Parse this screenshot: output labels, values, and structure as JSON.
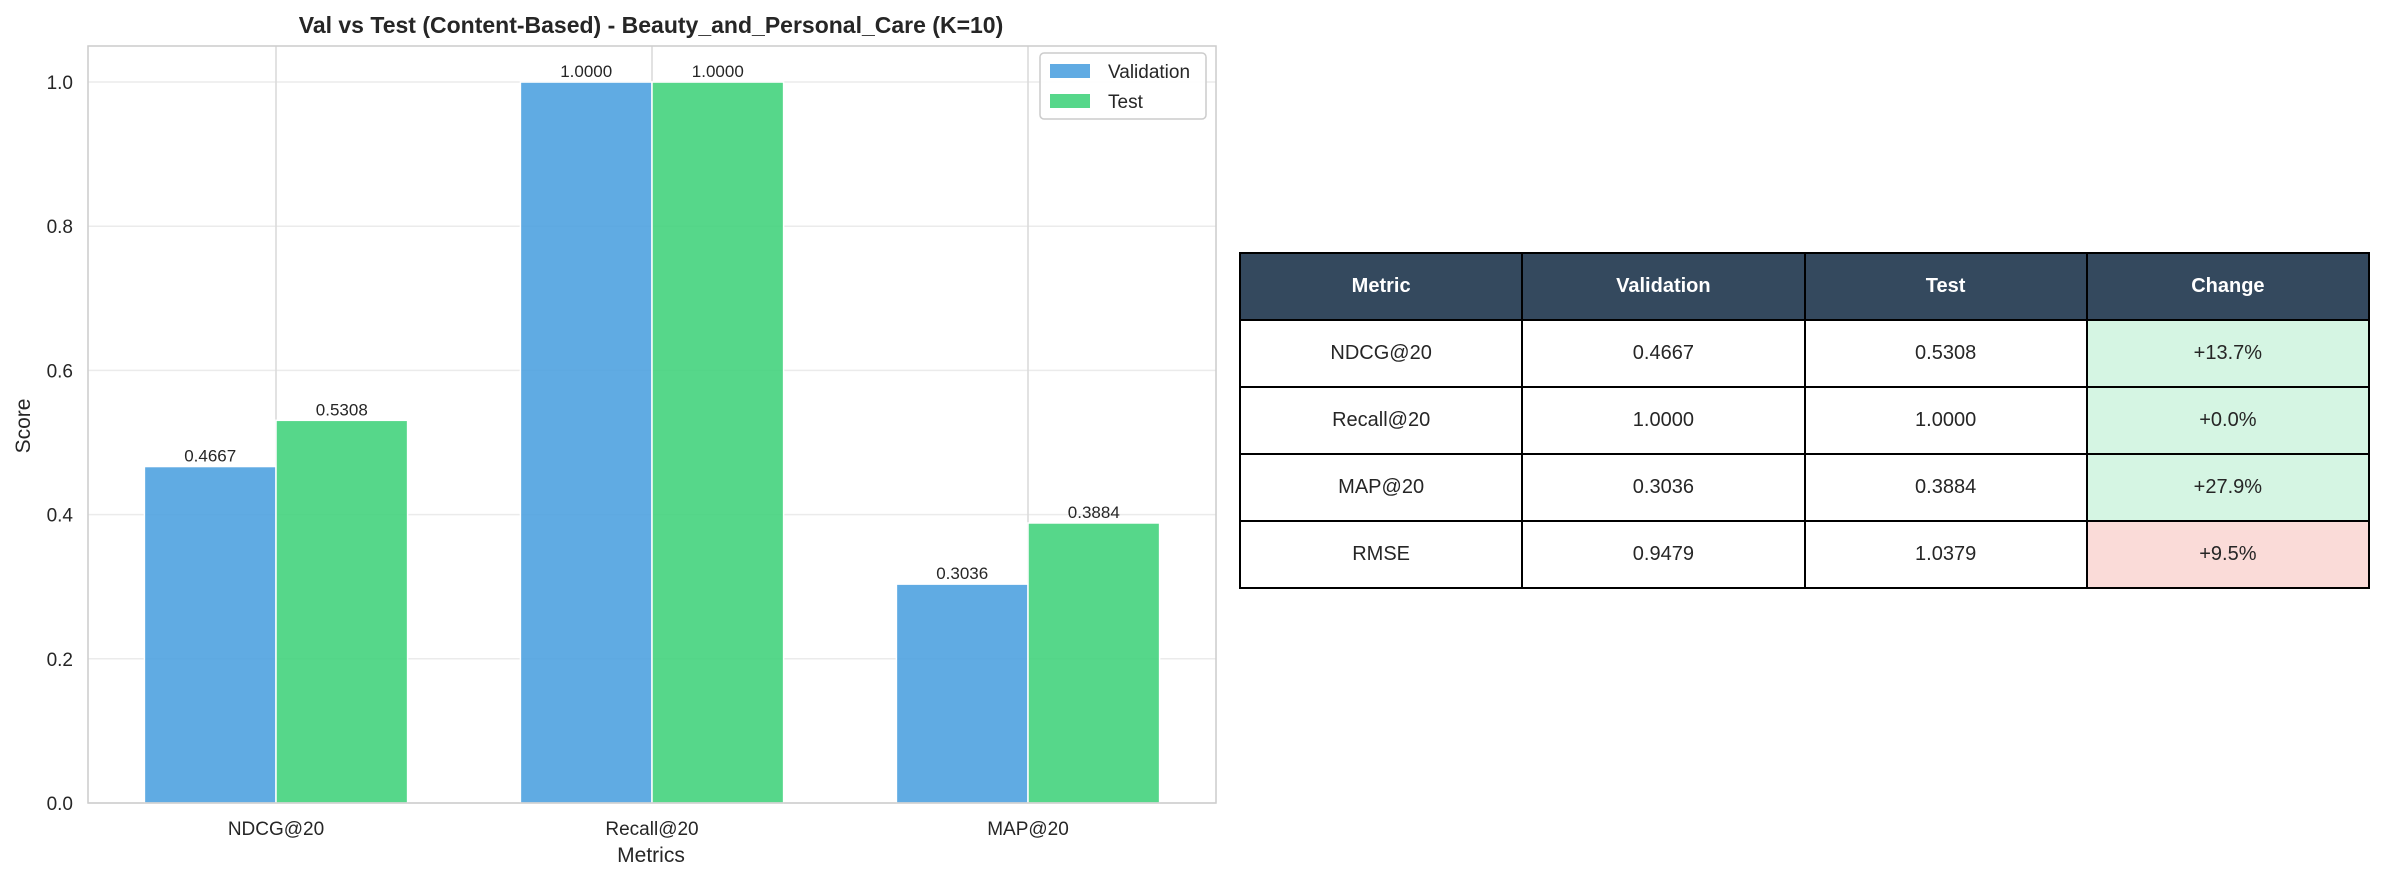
{
  "chart_data": {
    "type": "bar",
    "title": "Val vs Test (Content-Based) - Beauty_and_Personal_Care (K=10)",
    "xlabel": "Metrics",
    "ylabel": "Score",
    "ylim": [
      0,
      1.05
    ],
    "yticks": [
      "0.0",
      "0.2",
      "0.4",
      "0.6",
      "0.8",
      "1.0"
    ],
    "categories": [
      "NDCG@20",
      "Recall@20",
      "MAP@20"
    ],
    "series": [
      {
        "name": "Validation",
        "values": [
          0.4667,
          1.0,
          0.3036
        ],
        "labels": [
          "0.4667",
          "1.0000",
          "0.3036"
        ],
        "color": "#4a9fdf"
      },
      {
        "name": "Test",
        "values": [
          0.5308,
          1.0,
          0.3884
        ],
        "labels": [
          "0.5308",
          "1.0000",
          "0.3884"
        ],
        "color": "#3fd17a"
      }
    ],
    "grid": true,
    "legend": "top-right"
  },
  "table": {
    "header_color": "#34495e",
    "headers": [
      "Metric",
      "Validation",
      "Test",
      "Change"
    ],
    "rows": [
      {
        "cells": [
          "NDCG@20",
          "0.4667",
          "0.5308",
          "+13.7%"
        ],
        "change_color": "#d5f5e3"
      },
      {
        "cells": [
          "Recall@20",
          "1.0000",
          "1.0000",
          "+0.0%"
        ],
        "change_color": "#d5f5e3"
      },
      {
        "cells": [
          "MAP@20",
          "0.3036",
          "0.3884",
          "+27.9%"
        ],
        "change_color": "#d5f5e3"
      },
      {
        "cells": [
          "RMSE",
          "0.9479",
          "1.0379",
          "+9.5%"
        ],
        "change_color": "#fadbd8"
      }
    ]
  }
}
